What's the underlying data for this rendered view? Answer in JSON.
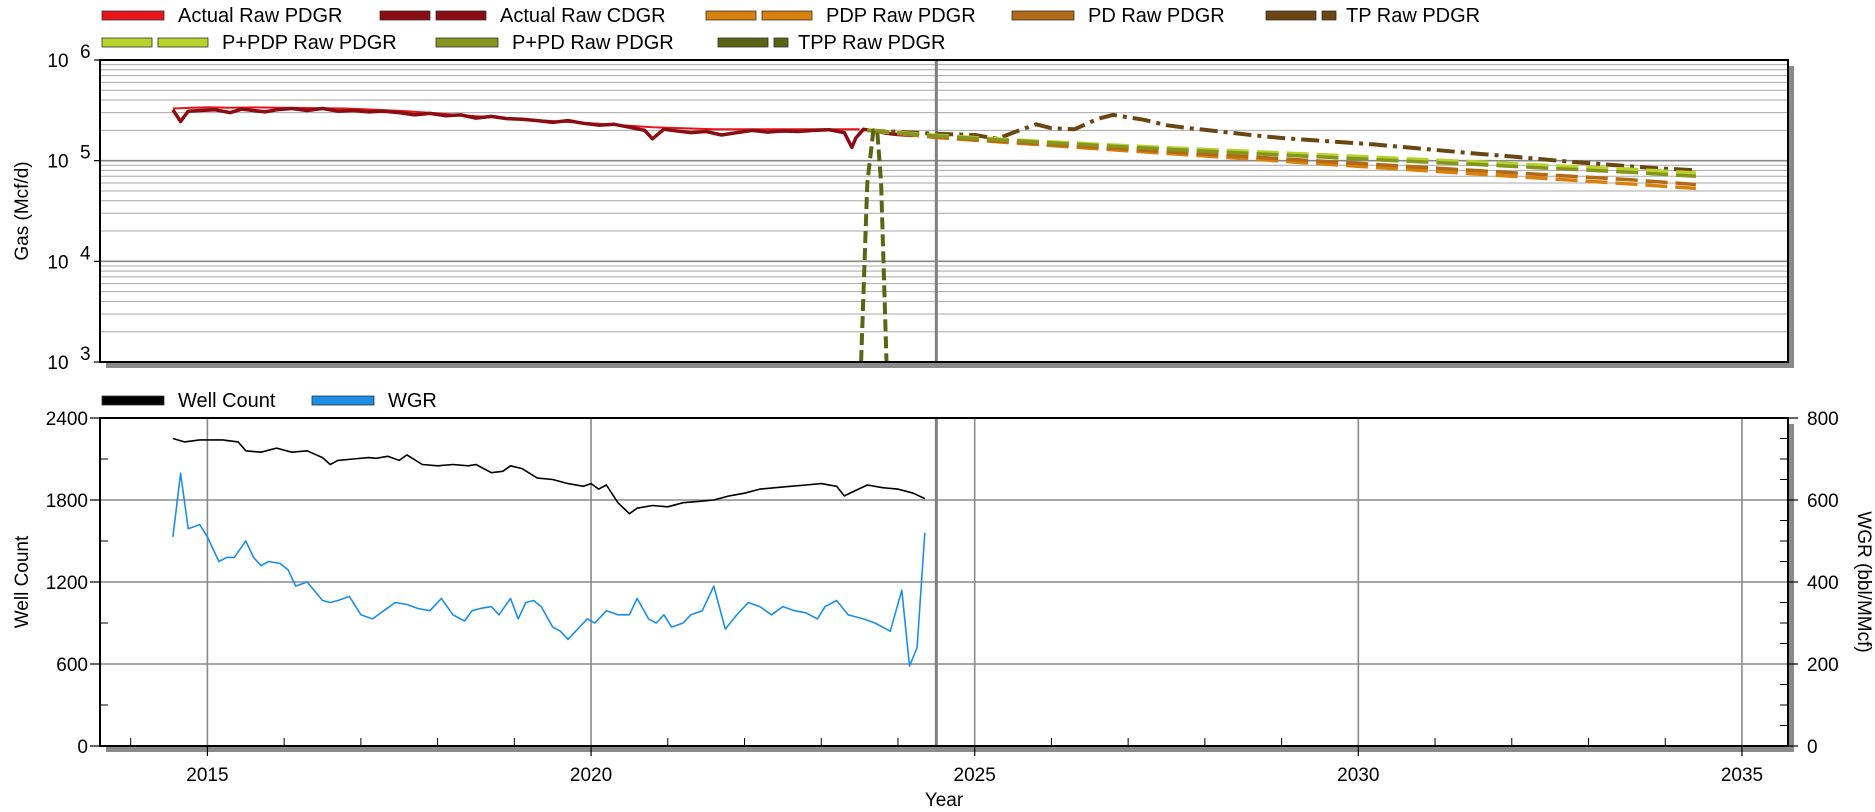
{
  "chart_data": [
    {
      "type": "line",
      "scale": "log",
      "ylabel": "Gas (Mcf/d)",
      "xlim": [
        2013.6,
        2035.6
      ],
      "ylim": [
        1000,
        1000000
      ],
      "yticks": [
        {
          "base": "10",
          "exp": "3"
        },
        {
          "base": "10",
          "exp": "4"
        },
        {
          "base": "10",
          "exp": "5"
        },
        {
          "base": "10",
          "exp": "6"
        }
      ],
      "legend_placement": "top",
      "grid": true,
      "vline_x": 2024.5,
      "series": [
        {
          "name": "Actual Raw PDGR",
          "color": "#e8141b",
          "dash": "none",
          "width": 2,
          "x": [
            2014.55,
            2014.8,
            2015.0,
            2015.3,
            2015.6,
            2016.0,
            2016.4,
            2016.8,
            2017.2,
            2017.6,
            2018.0,
            2018.4,
            2018.8,
            2019.2,
            2019.6,
            2020.0,
            2020.4,
            2020.8,
            2021.2,
            2021.6,
            2022.0,
            2022.4,
            2022.8,
            2023.2,
            2023.5
          ],
          "y": [
            330000,
            335000,
            340000,
            335000,
            338000,
            336000,
            333000,
            330000,
            320000,
            310000,
            295000,
            280000,
            268000,
            255000,
            245000,
            235000,
            225000,
            215000,
            210000,
            205000,
            205000,
            205000,
            205000,
            205000,
            205000
          ]
        },
        {
          "name": "Actual Raw CDGR",
          "color": "#8b0d14",
          "dash": "none",
          "width": 3.5,
          "x": [
            2014.55,
            2014.65,
            2014.75,
            2014.9,
            2015.1,
            2015.3,
            2015.45,
            2015.6,
            2015.75,
            2015.9,
            2016.1,
            2016.3,
            2016.5,
            2016.7,
            2016.9,
            2017.1,
            2017.3,
            2017.5,
            2017.7,
            2017.9,
            2018.1,
            2018.3,
            2018.5,
            2018.7,
            2018.9,
            2019.1,
            2019.3,
            2019.5,
            2019.7,
            2019.9,
            2020.1,
            2020.3,
            2020.5,
            2020.7,
            2020.8,
            2020.95,
            2021.1,
            2021.3,
            2021.5,
            2021.7,
            2021.9,
            2022.1,
            2022.3,
            2022.5,
            2022.7,
            2022.9,
            2023.1,
            2023.3,
            2023.4,
            2023.45,
            2023.55,
            2023.7,
            2023.85,
            2024.0,
            2024.2
          ],
          "y": [
            320000,
            245000,
            310000,
            315000,
            320000,
            300000,
            325000,
            315000,
            305000,
            320000,
            330000,
            315000,
            330000,
            310000,
            315000,
            305000,
            310000,
            300000,
            285000,
            295000,
            280000,
            285000,
            265000,
            275000,
            262000,
            258000,
            250000,
            240000,
            250000,
            235000,
            225000,
            230000,
            215000,
            200000,
            165000,
            205000,
            198000,
            190000,
            195000,
            180000,
            190000,
            200000,
            192000,
            197000,
            195000,
            200000,
            203000,
            190000,
            135000,
            168000,
            205000,
            198000,
            187000,
            182000,
            178000
          ]
        },
        {
          "name": "PDP Raw PDGR",
          "color": "#d9810e",
          "dash": "22 8",
          "width": 3.5,
          "x": [
            2023.6,
            2024.5,
            2025.5,
            2026.5,
            2027.5,
            2028.5,
            2029.5,
            2030.5,
            2031.5,
            2032.5,
            2033.5,
            2034.4
          ],
          "y": [
            200000,
            170000,
            150000,
            133000,
            118000,
            105000,
            93000,
            83000,
            74000,
            66000,
            59000,
            53000
          ]
        },
        {
          "name": "PD Raw PDGR",
          "color": "#b36a14",
          "dash": "22 8",
          "width": 3.5,
          "x": [
            2023.6,
            2024.5,
            2025.5,
            2026.5,
            2027.5,
            2028.5,
            2029.5,
            2030.5,
            2031.5,
            2032.5,
            2033.5,
            2034.4
          ],
          "y": [
            200000,
            172000,
            153000,
            137000,
            123000,
            110000,
            99000,
            89000,
            80000,
            72000,
            65000,
            58000
          ]
        },
        {
          "name": "TP Raw PDGR",
          "color": "#6b4613",
          "dash": "18 6 4 6",
          "width": 4,
          "x": [
            2023.6,
            2024.5,
            2025.0,
            2025.3,
            2025.5,
            2025.8,
            2026.0,
            2026.3,
            2026.6,
            2026.8,
            2027.2,
            2027.5,
            2027.8,
            2028.2,
            2028.6,
            2029.0,
            2029.6,
            2030.2,
            2030.8,
            2031.4,
            2032.0,
            2032.6,
            2033.2,
            2033.8,
            2034.4
          ],
          "y": [
            200000,
            185000,
            180000,
            165000,
            190000,
            230000,
            210000,
            205000,
            260000,
            285000,
            255000,
            225000,
            210000,
            195000,
            180000,
            168000,
            156000,
            145000,
            132000,
            120000,
            110000,
            100000,
            92000,
            85000,
            80000
          ]
        },
        {
          "name": "P+PDP Raw PDGR",
          "color": "#b8d42c",
          "dash": "22 8",
          "width": 4,
          "x": [
            2023.6,
            2024.5,
            2025.5,
            2026.5,
            2027.5,
            2028.5,
            2029.5,
            2030.5,
            2031.5,
            2032.5,
            2033.5,
            2034.4
          ],
          "y": [
            200000,
            178000,
            160000,
            146000,
            134000,
            124000,
            114000,
            105000,
            97000,
            89000,
            82000,
            75000
          ]
        },
        {
          "name": "P+PD Raw PDGR",
          "color": "#85951d",
          "dash": "22 8",
          "width": 3.5,
          "x": [
            2023.6,
            2024.5,
            2025.5,
            2026.5,
            2027.5,
            2028.5,
            2029.5,
            2030.5,
            2031.5,
            2032.5,
            2033.5,
            2034.4
          ],
          "y": [
            200000,
            176000,
            158000,
            143000,
            130000,
            119000,
            109000,
            100000,
            92000,
            84000,
            77000,
            70000
          ]
        },
        {
          "name": "TPP Raw PDGR",
          "color": "#5a6615",
          "dash": "12 5",
          "width": 4,
          "x": [
            2023.52,
            2023.6,
            2023.68,
            2023.73,
            2023.78,
            2023.85
          ],
          "y": [
            1000,
            60000,
            200000,
            200000,
            60000,
            1000
          ]
        }
      ]
    },
    {
      "type": "line",
      "ylabel": "Well Count",
      "y2label": "WGR (bbl/MMcf)",
      "xlabel": "Year",
      "xlim": [
        2013.6,
        2035.6
      ],
      "ylim": [
        0,
        2400
      ],
      "y2lim": [
        0,
        800
      ],
      "xticks": [
        2015,
        2020,
        2025,
        2030,
        2035
      ],
      "yticks": [
        0,
        600,
        1200,
        1800,
        2400
      ],
      "y2ticks": [
        0,
        200,
        400,
        600,
        800
      ],
      "legend_placement": "top",
      "grid": true,
      "vline_x": 2024.5,
      "series": [
        {
          "name": "Well Count",
          "axis": "left",
          "color": "#000000",
          "width": 1.6,
          "x": [
            2014.55,
            2014.7,
            2014.9,
            2015.2,
            2015.4,
            2015.5,
            2015.7,
            2015.9,
            2016.1,
            2016.3,
            2016.5,
            2016.6,
            2016.7,
            2016.9,
            2017.1,
            2017.2,
            2017.35,
            2017.5,
            2017.6,
            2017.8,
            2018.0,
            2018.2,
            2018.4,
            2018.5,
            2018.6,
            2018.7,
            2018.85,
            2018.95,
            2019.1,
            2019.3,
            2019.5,
            2019.7,
            2019.9,
            2020.0,
            2020.1,
            2020.2,
            2020.35,
            2020.5,
            2020.6,
            2020.8,
            2021.0,
            2021.2,
            2021.4,
            2021.6,
            2021.8,
            2022.0,
            2022.2,
            2022.4,
            2022.6,
            2022.8,
            2023.0,
            2023.2,
            2023.3,
            2023.45,
            2023.6,
            2023.8,
            2024.0,
            2024.2,
            2024.35
          ],
          "y": [
            2250,
            2225,
            2240,
            2240,
            2225,
            2160,
            2150,
            2180,
            2150,
            2160,
            2110,
            2060,
            2090,
            2100,
            2110,
            2105,
            2120,
            2090,
            2130,
            2060,
            2050,
            2060,
            2050,
            2060,
            2030,
            2000,
            2010,
            2050,
            2030,
            1960,
            1950,
            1920,
            1900,
            1920,
            1880,
            1910,
            1780,
            1700,
            1740,
            1760,
            1750,
            1780,
            1790,
            1800,
            1830,
            1850,
            1880,
            1890,
            1900,
            1910,
            1920,
            1900,
            1830,
            1870,
            1910,
            1890,
            1880,
            1850,
            1810
          ]
        },
        {
          "name": "WGR",
          "axis": "right",
          "color": "#1c8ee6",
          "width": 1.6,
          "x": [
            2014.55,
            2014.65,
            2014.75,
            2014.9,
            2015.0,
            2015.15,
            2015.25,
            2015.35,
            2015.5,
            2015.6,
            2015.7,
            2015.8,
            2015.95,
            2016.05,
            2016.15,
            2016.3,
            2016.5,
            2016.6,
            2016.7,
            2016.85,
            2017.0,
            2017.15,
            2017.3,
            2017.45,
            2017.6,
            2017.75,
            2017.9,
            2018.05,
            2018.2,
            2018.35,
            2018.45,
            2018.55,
            2018.7,
            2018.8,
            2018.95,
            2019.05,
            2019.15,
            2019.25,
            2019.35,
            2019.5,
            2019.6,
            2019.7,
            2019.8,
            2019.95,
            2020.05,
            2020.2,
            2020.35,
            2020.5,
            2020.6,
            2020.75,
            2020.85,
            2020.95,
            2021.05,
            2021.2,
            2021.3,
            2021.45,
            2021.6,
            2021.75,
            2021.9,
            2022.05,
            2022.2,
            2022.35,
            2022.5,
            2022.65,
            2022.8,
            2022.95,
            2023.05,
            2023.2,
            2023.35,
            2023.45,
            2023.55,
            2023.7,
            2023.8,
            2023.9,
            2024.05,
            2024.15,
            2024.25,
            2024.35
          ],
          "y": [
            510,
            665,
            530,
            540,
            510,
            450,
            460,
            460,
            500,
            460,
            440,
            450,
            445,
            430,
            390,
            400,
            355,
            350,
            355,
            365,
            320,
            310,
            330,
            350,
            345,
            335,
            330,
            360,
            320,
            305,
            330,
            335,
            340,
            320,
            360,
            310,
            350,
            355,
            340,
            290,
            280,
            260,
            280,
            310,
            300,
            330,
            320,
            320,
            360,
            310,
            300,
            320,
            290,
            300,
            320,
            330,
            390,
            285,
            320,
            350,
            340,
            320,
            340,
            330,
            325,
            310,
            340,
            355,
            320,
            315,
            310,
            300,
            290,
            280,
            380,
            195,
            240,
            520
          ]
        }
      ],
      "wgr_tail_x": [
        2023.05,
        2023.2,
        2023.35,
        2023.45,
        2023.55,
        2023.7,
        2023.8,
        2023.95,
        2024.05,
        2024.15,
        2024.25,
        2024.35
      ],
      "wgr_tail_y": [
        305,
        310,
        305,
        305,
        375,
        200,
        230,
        240,
        300,
        315,
        310,
        180
      ]
    }
  ],
  "legend_top": [
    {
      "label": "Actual Raw PDGR",
      "color": "#e8141b",
      "style": "solid"
    },
    {
      "label": "Actual Raw CDGR",
      "color": "#8b0d14",
      "style": "double"
    },
    {
      "label": "PDP Raw PDGR",
      "color": "#d9810e",
      "style": "double"
    },
    {
      "label": "PD Raw PDGR",
      "color": "#b36a14",
      "style": "solid"
    },
    {
      "label": "TP Raw PDGR",
      "color": "#6b4613",
      "style": "dashdot"
    },
    {
      "label": "P+PDP Raw PDGR",
      "color": "#b8d42c",
      "style": "double"
    },
    {
      "label": "P+PD Raw PDGR",
      "color": "#85951d",
      "style": "solid"
    },
    {
      "label": "TPP Raw PDGR",
      "color": "#5a6615",
      "style": "dashdot"
    }
  ],
  "legend_bottom": [
    {
      "label": "Well Count",
      "color": "#000000",
      "style": "solid"
    },
    {
      "label": "WGR",
      "color": "#1c8ee6",
      "style": "solid"
    }
  ]
}
